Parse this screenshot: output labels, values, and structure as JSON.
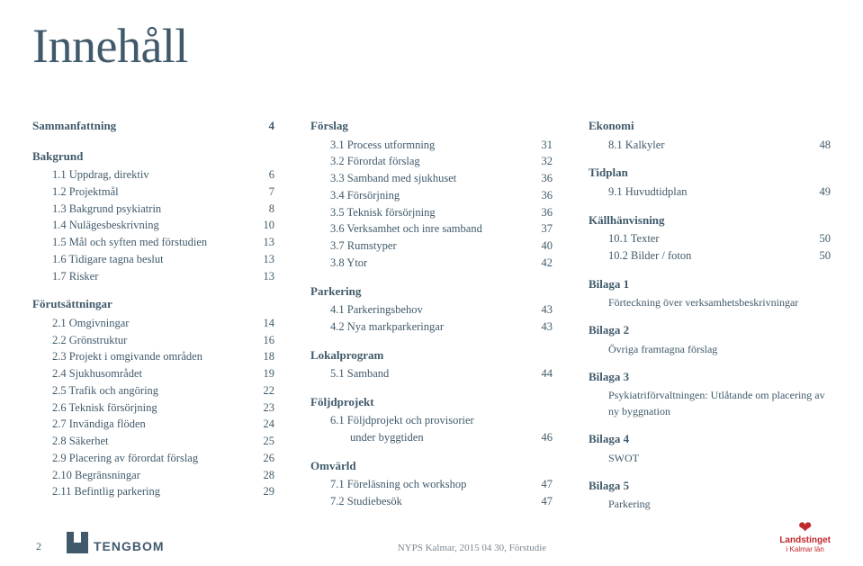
{
  "title": "Innehåll",
  "columns": [
    [
      {
        "type": "h",
        "text": "Sammanfattning",
        "page": "4",
        "first": true
      },
      {
        "type": "h",
        "text": "Bakgrund"
      },
      {
        "type": "r",
        "text": "1.1 Uppdrag, direktiv",
        "page": "6"
      },
      {
        "type": "r",
        "text": "1.2 Projektmål",
        "page": "7"
      },
      {
        "type": "r",
        "text": "1.3 Bakgrund psykiatrin",
        "page": "8"
      },
      {
        "type": "r",
        "text": "1.4 Nulägesbeskrivning",
        "page": "10"
      },
      {
        "type": "r",
        "text": "1.5 Mål och syften med förstudien",
        "page": "13"
      },
      {
        "type": "r",
        "text": "1.6 Tidigare tagna beslut",
        "page": "13"
      },
      {
        "type": "r",
        "text": "1.7 Risker",
        "page": "13"
      },
      {
        "type": "h",
        "text": "Förutsättningar"
      },
      {
        "type": "r",
        "text": "2.1 Omgivningar",
        "page": "14"
      },
      {
        "type": "r",
        "text": "2.2 Grönstruktur",
        "page": "16"
      },
      {
        "type": "r",
        "text": "2.3 Projekt i omgivande områden",
        "page": "18"
      },
      {
        "type": "r",
        "text": "2.4 Sjukhusområdet",
        "page": "19"
      },
      {
        "type": "r",
        "text": "2.5 Trafik och angöring",
        "page": "22"
      },
      {
        "type": "r",
        "text": "2.6 Teknisk försörjning",
        "page": "23"
      },
      {
        "type": "r",
        "text": "2.7 Invändiga flöden",
        "page": "24"
      },
      {
        "type": "r",
        "text": "2.8 Säkerhet",
        "page": "25"
      },
      {
        "type": "r",
        "text": "2.9 Placering av förordat förslag",
        "page": "26"
      },
      {
        "type": "r",
        "text": "2.10 Begränsningar",
        "page": "28"
      },
      {
        "type": "r",
        "text": "2.11 Befintlig parkering",
        "page": "29"
      }
    ],
    [
      {
        "type": "h",
        "text": "Förslag",
        "first": true
      },
      {
        "type": "r",
        "text": "3.1 Process utformning",
        "page": "31"
      },
      {
        "type": "r",
        "text": "3.2 Förordat förslag",
        "page": "32"
      },
      {
        "type": "r",
        "text": "3.3 Samband med sjukhuset",
        "page": "36"
      },
      {
        "type": "r",
        "text": "3.4 Försörjning",
        "page": "36"
      },
      {
        "type": "r",
        "text": "3.5 Teknisk försörjning",
        "page": "36"
      },
      {
        "type": "r",
        "text": "3.6 Verksamhet och inre samband",
        "page": "37"
      },
      {
        "type": "r",
        "text": "3.7 Rumstyper",
        "page": "40"
      },
      {
        "type": "r",
        "text": "3.8 Ytor",
        "page": "42"
      },
      {
        "type": "h",
        "text": "Parkering"
      },
      {
        "type": "r",
        "text": "4.1 Parkeringsbehov",
        "page": "43"
      },
      {
        "type": "r",
        "text": "4.2 Nya markparkeringar",
        "page": "43"
      },
      {
        "type": "h",
        "text": "Lokalprogram"
      },
      {
        "type": "r",
        "text": "5.1 Samband",
        "page": "44"
      },
      {
        "type": "h",
        "text": "Följdprojekt"
      },
      {
        "type": "r",
        "text": "6.1 Följdprojekt och provisorier",
        "page": ""
      },
      {
        "type": "rsub",
        "text": "under byggtiden",
        "page": "46"
      },
      {
        "type": "h",
        "text": "Omvärld"
      },
      {
        "type": "r",
        "text": "7.1 Föreläsning och workshop",
        "page": "47"
      },
      {
        "type": "r",
        "text": "7.2 Studiebesök",
        "page": "47"
      }
    ],
    [
      {
        "type": "h",
        "text": "Ekonomi",
        "first": true
      },
      {
        "type": "r",
        "text": "8.1 Kalkyler",
        "page": "48"
      },
      {
        "type": "h",
        "text": "Tidplan"
      },
      {
        "type": "r",
        "text": "9.1 Huvudtidplan",
        "page": "49"
      },
      {
        "type": "h",
        "text": "Källhänvisning"
      },
      {
        "type": "r",
        "text": "10.1 Texter",
        "page": "50"
      },
      {
        "type": "r",
        "text": "10.2 Bilder / foton",
        "page": "50"
      },
      {
        "type": "h",
        "text": "Bilaga 1"
      },
      {
        "type": "b",
        "text": "Förteckning över verksamhetsbeskrivningar"
      },
      {
        "type": "h",
        "text": "Bilaga 2"
      },
      {
        "type": "b",
        "text": "Övriga framtagna förslag"
      },
      {
        "type": "h",
        "text": "Bilaga 3"
      },
      {
        "type": "b",
        "text": "Psykiatriförvaltningen: Utlåtande om placering av ny byggnation"
      },
      {
        "type": "h",
        "text": "Bilaga 4"
      },
      {
        "type": "b",
        "text": "SWOT"
      },
      {
        "type": "h",
        "text": "Bilaga 5"
      },
      {
        "type": "b",
        "text": "Parkering"
      }
    ]
  ],
  "footer": {
    "page_num": "2",
    "brand": "TENGBOM",
    "doc_ref": "NYPS Kalmar, 2015 04 30, Förstudie",
    "landsting_name": "Landstinget",
    "landsting_sub": "i Kalmar län"
  }
}
